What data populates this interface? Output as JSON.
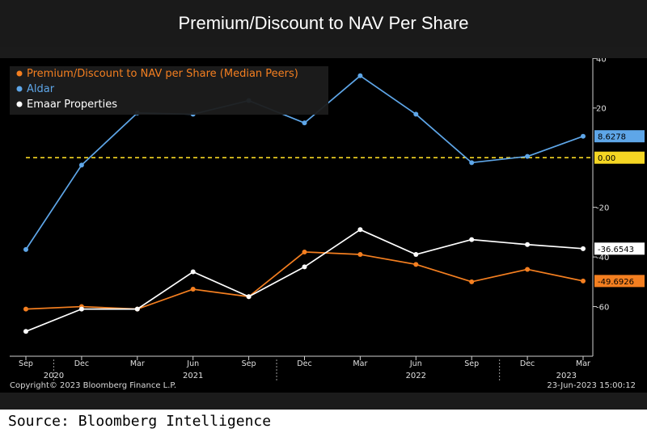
{
  "page": {
    "title": "Premium/Discount to NAV Per Share",
    "source": "Source: Bloomberg Intelligence"
  },
  "chart_data": {
    "type": "line",
    "title": "Premium/Discount to NAV Per Share",
    "xlabel": "",
    "ylabel": "",
    "ylim": [
      -80,
      40
    ],
    "yticks": [
      40,
      20,
      -20,
      -40,
      -60
    ],
    "ytick_labels": [
      "40",
      "20",
      "-20",
      "-40",
      "-60"
    ],
    "x": [
      "Sep",
      "Dec",
      "Mar",
      "Jun",
      "Sep",
      "Dec",
      "Mar",
      "Jun",
      "Sep",
      "Dec",
      "Mar"
    ],
    "year_labels": [
      {
        "label": "2020",
        "index": 0.5
      },
      {
        "label": "2021",
        "index": 3
      },
      {
        "label": "2022",
        "index": 7
      },
      {
        "label": "2023",
        "index": 9.7
      }
    ],
    "year_separators": [
      0.5,
      4.5,
      8.5
    ],
    "series": [
      {
        "name": "Premium/Discount to NAV per Share (Median Peers)",
        "color": "#f47f20",
        "values": [
          -61,
          -60,
          -61,
          -53,
          -56,
          -38,
          -39,
          -43,
          -50,
          -45,
          -49.6926
        ],
        "last_label": "-49.6926"
      },
      {
        "name": "Aldar",
        "color": "#5ea6e8",
        "values": [
          -37,
          -3,
          18,
          17.5,
          23,
          14,
          33,
          17.5,
          -2,
          0.5,
          8.6278
        ],
        "last_label": "8.6278"
      },
      {
        "name": "Emaar Properties",
        "color": "#ffffff",
        "values": [
          -70,
          -61,
          -61,
          -46,
          -56,
          -44,
          -29,
          -39,
          -33,
          -35,
          -36.6543
        ],
        "last_label": "-36.6543"
      }
    ],
    "reference_line": {
      "value": 0,
      "label": "0.00",
      "color": "#f5d623"
    },
    "grid": false,
    "legend_position": "top-left",
    "copyright": "Copyright© 2023 Bloomberg Finance L.P.",
    "timestamp": "23-Jun-2023 15:00:12"
  }
}
